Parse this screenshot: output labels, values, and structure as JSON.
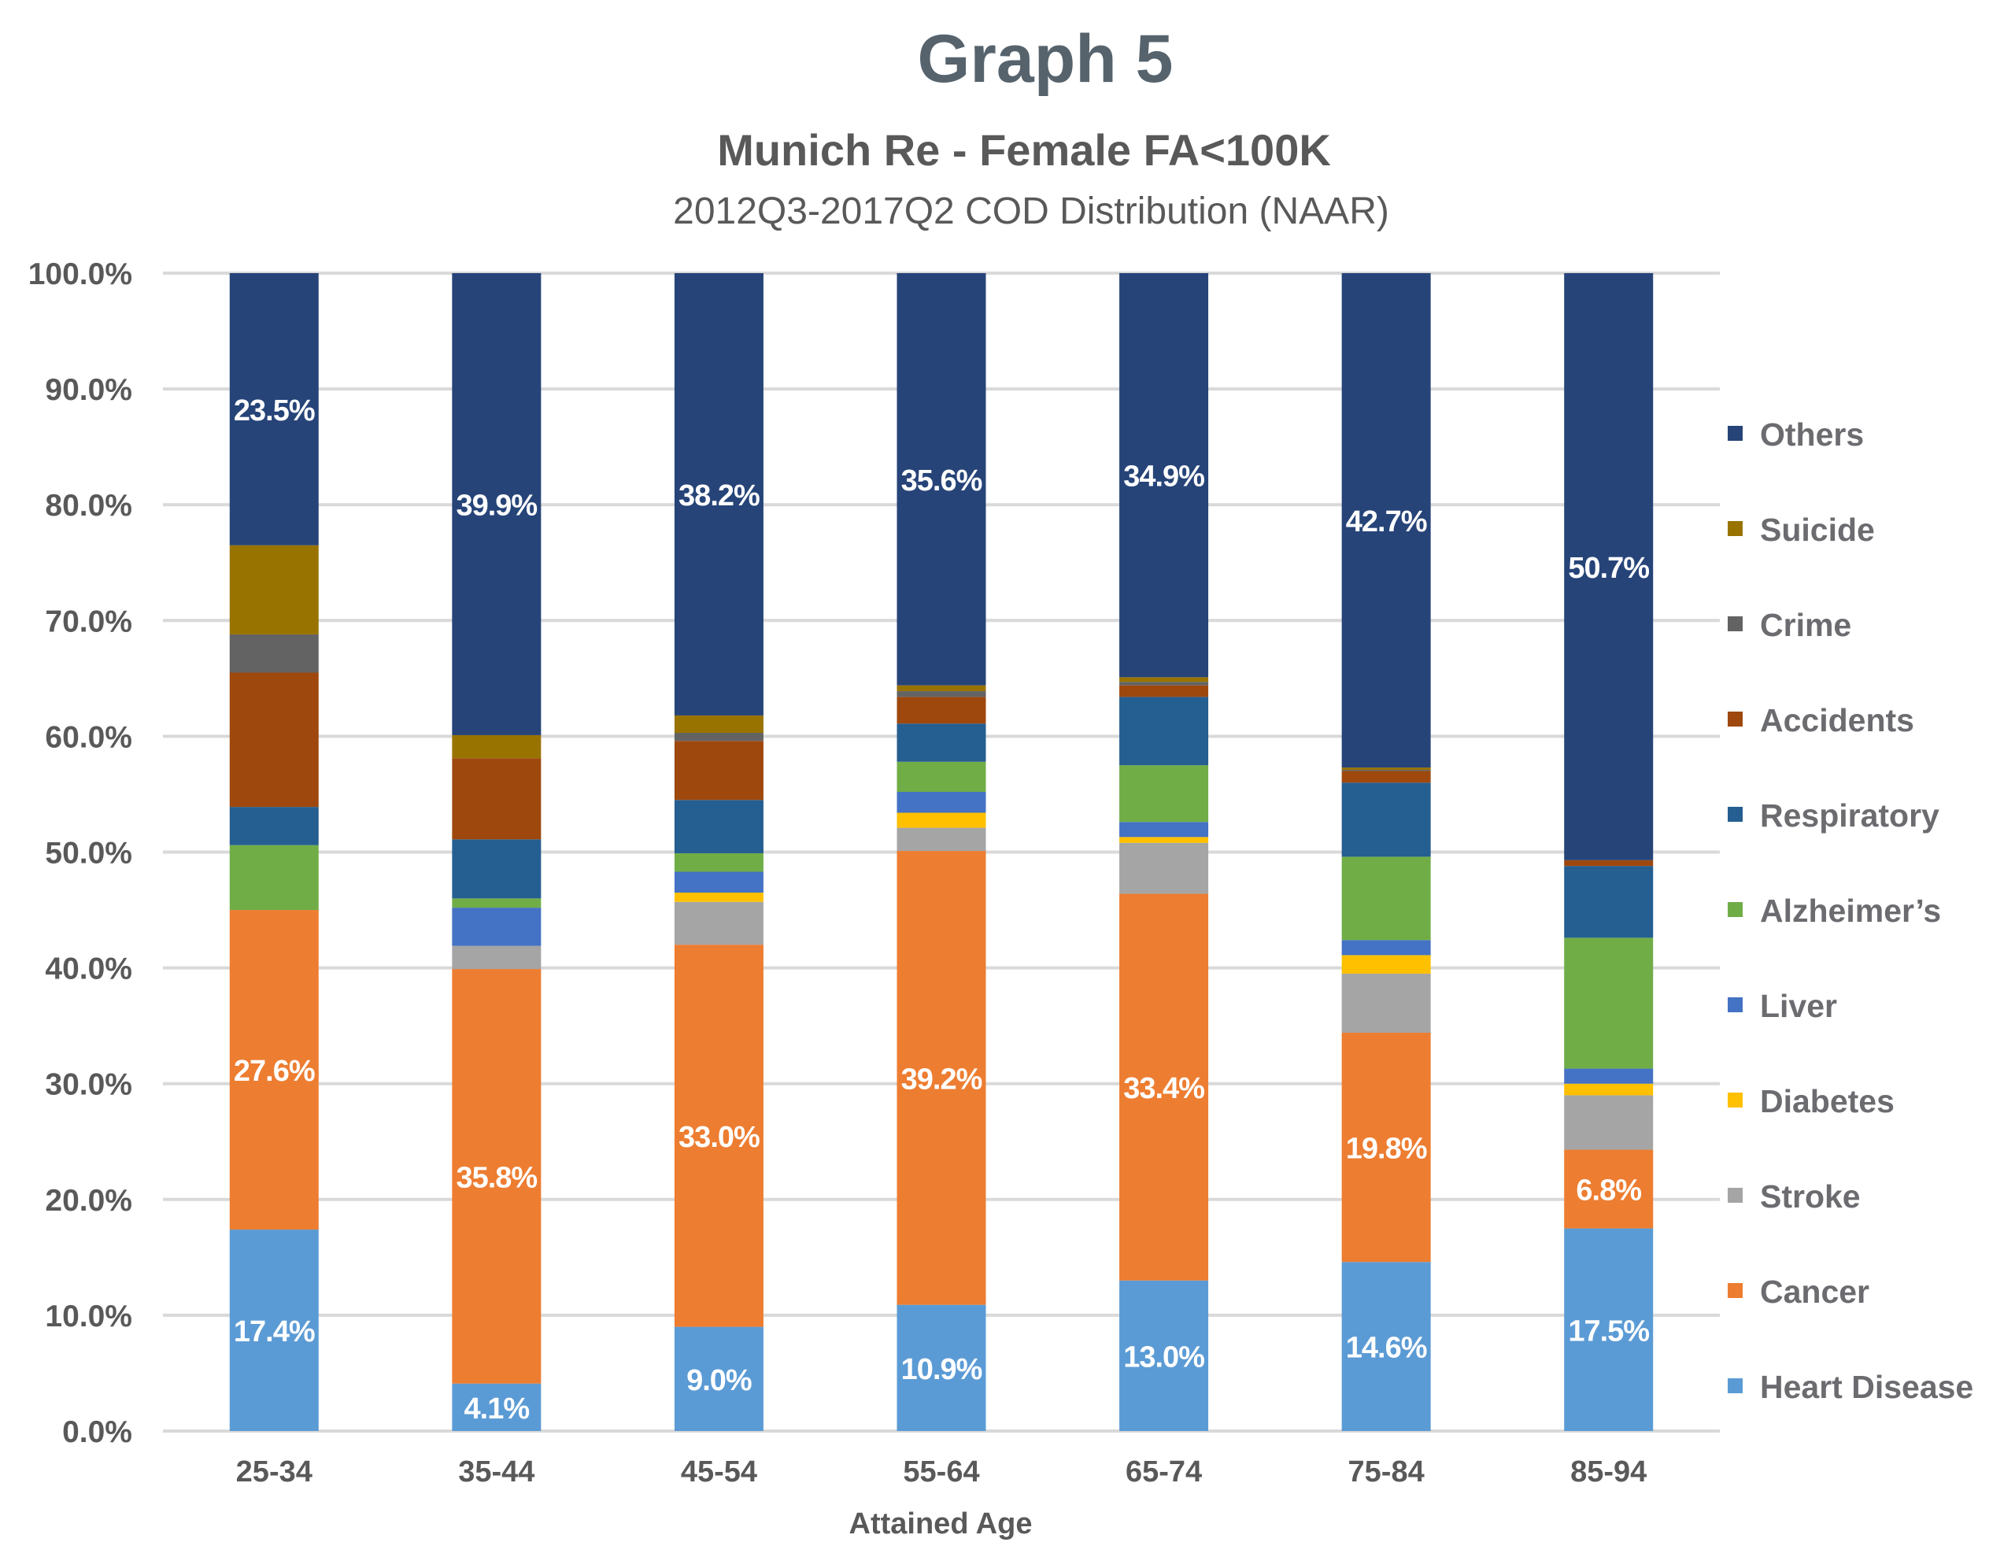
{
  "chart_data": {
    "type": "bar",
    "stacked": true,
    "normalized": true,
    "title": "Graph 5",
    "subtitle": "Munich Re - Female FA<100K",
    "subsubtitle": "2012Q3-2017Q2 COD Distribution (NAAR)",
    "xlabel": "Attained Age",
    "ylabel": "",
    "ylim": [
      0,
      100
    ],
    "yticks": [
      "0.0%",
      "10.0%",
      "20.0%",
      "30.0%",
      "40.0%",
      "50.0%",
      "60.0%",
      "70.0%",
      "80.0%",
      "90.0%",
      "100.0%"
    ],
    "grid": true,
    "legend_position": "right",
    "categories": [
      "25-34",
      "35-44",
      "45-54",
      "55-64",
      "65-74",
      "75-84",
      "85-94"
    ],
    "series": [
      {
        "name": "Heart Disease",
        "color": "#5b9bd5",
        "values": [
          17.4,
          4.1,
          9.0,
          10.9,
          13.0,
          14.6,
          17.5
        ],
        "labels": [
          "17.4%",
          "4.1%",
          "9.0%",
          "10.9%",
          "13.0%",
          "14.6%",
          "17.5%"
        ]
      },
      {
        "name": "Cancer",
        "color": "#ed7d31",
        "values": [
          27.6,
          35.8,
          33.0,
          39.2,
          33.4,
          19.8,
          6.8
        ],
        "labels": [
          "27.6%",
          "35.8%",
          "33.0%",
          "39.2%",
          "33.4%",
          "19.8%",
          "6.8%"
        ]
      },
      {
        "name": "Stroke",
        "color": "#a5a5a5",
        "values": [
          0.0,
          2.0,
          3.7,
          2.0,
          4.4,
          5.1,
          4.7
        ]
      },
      {
        "name": "Diabetes",
        "color": "#ffc000",
        "values": [
          0.0,
          0.0,
          0.8,
          1.3,
          0.5,
          1.6,
          1.0
        ]
      },
      {
        "name": "Liver",
        "color": "#4472c4",
        "values": [
          0.0,
          3.3,
          1.8,
          1.8,
          1.3,
          1.3,
          1.3
        ]
      },
      {
        "name": "Alzheimer’s",
        "color": "#70ad47",
        "values": [
          5.6,
          0.8,
          1.6,
          2.6,
          4.9,
          7.2,
          11.3
        ]
      },
      {
        "name": "Respiratory",
        "color": "#255e91",
        "values": [
          3.3,
          5.1,
          4.6,
          3.3,
          5.9,
          6.4,
          6.2
        ]
      },
      {
        "name": "Accidents",
        "color": "#9e480e",
        "values": [
          11.6,
          7.0,
          5.1,
          2.3,
          1.0,
          1.0,
          0.5
        ]
      },
      {
        "name": "Crime",
        "color": "#636363",
        "values": [
          3.3,
          0.0,
          0.7,
          0.5,
          0.3,
          0.1,
          0.0
        ]
      },
      {
        "name": "Suicide",
        "color": "#997300",
        "values": [
          7.7,
          2.0,
          1.5,
          0.5,
          0.4,
          0.2,
          0.0
        ]
      },
      {
        "name": "Others",
        "color": "#264478",
        "values": [
          23.5,
          39.9,
          38.2,
          35.6,
          34.9,
          42.7,
          50.7
        ],
        "labels": [
          "23.5%",
          "39.9%",
          "38.2%",
          "35.6%",
          "34.9%",
          "42.7%",
          "50.7%"
        ]
      }
    ],
    "legend_order": [
      "Others",
      "Suicide",
      "Crime",
      "Accidents",
      "Respiratory",
      "Alzheimer’s",
      "Liver",
      "Diabetes",
      "Stroke",
      "Cancer",
      "Heart Disease"
    ]
  }
}
